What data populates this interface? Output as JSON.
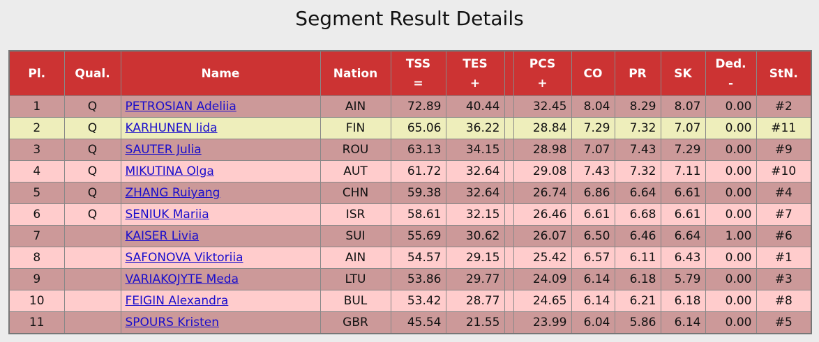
{
  "header": {
    "title": "Segment Result Details"
  },
  "table": {
    "columns": [
      {
        "label": "Pl."
      },
      {
        "label": "Qual."
      },
      {
        "label": "Name"
      },
      {
        "label": "Nation"
      },
      {
        "label": "TSS",
        "sub": "="
      },
      {
        "label": "TES",
        "sub": "+"
      },
      {
        "label": "PCS",
        "sub": "+"
      },
      {
        "label": "CO"
      },
      {
        "label": "PR"
      },
      {
        "label": "SK"
      },
      {
        "label": "Ded.",
        "sub": "-"
      },
      {
        "label": "StN."
      }
    ],
    "rows": [
      [
        "1",
        "Q",
        "PETROSIAN Adeliia",
        "AIN",
        "72.89",
        "40.44",
        "32.45",
        "8.04",
        "8.29",
        "8.07",
        "0.00",
        "#2"
      ],
      [
        "2",
        "Q",
        "KARHUNEN Iida",
        "FIN",
        "65.06",
        "36.22",
        "28.84",
        "7.29",
        "7.32",
        "7.07",
        "0.00",
        "#11"
      ],
      [
        "3",
        "Q",
        "SAUTER Julia",
        "ROU",
        "63.13",
        "34.15",
        "28.98",
        "7.07",
        "7.43",
        "7.29",
        "0.00",
        "#9"
      ],
      [
        "4",
        "Q",
        "MIKUTINA Olga",
        "AUT",
        "61.72",
        "32.64",
        "29.08",
        "7.43",
        "7.32",
        "7.11",
        "0.00",
        "#10"
      ],
      [
        "5",
        "Q",
        "ZHANG Ruiyang",
        "CHN",
        "59.38",
        "32.64",
        "26.74",
        "6.86",
        "6.64",
        "6.61",
        "0.00",
        "#4"
      ],
      [
        "6",
        "Q",
        "SENIUK Mariia",
        "ISR",
        "58.61",
        "32.15",
        "26.46",
        "6.61",
        "6.68",
        "6.61",
        "0.00",
        "#7"
      ],
      [
        "7",
        null,
        "KAISER Livia",
        "SUI",
        "55.69",
        "30.62",
        "26.07",
        "6.50",
        "6.46",
        "6.64",
        "1.00",
        "#6"
      ],
      [
        "8",
        null,
        "SAFONOVA Viktoriia",
        "AIN",
        "54.57",
        "29.15",
        "25.42",
        "6.57",
        "6.11",
        "6.43",
        "0.00",
        "#1"
      ],
      [
        "9",
        null,
        "VARIAKOJYTE Meda",
        "LTU",
        "53.86",
        "29.77",
        "24.09",
        "6.14",
        "6.18",
        "5.79",
        "0.00",
        "#3"
      ],
      [
        "10",
        null,
        "FEIGIN Alexandra",
        "BUL",
        "53.42",
        "28.77",
        "24.65",
        "6.14",
        "6.21",
        "6.18",
        "0.00",
        "#8"
      ],
      [
        "11",
        null,
        "SPOURS Kristen",
        "GBR",
        "45.54",
        "21.55",
        "23.99",
        "6.04",
        "5.86",
        "6.14",
        "0.00",
        "#5"
      ]
    ]
  }
}
